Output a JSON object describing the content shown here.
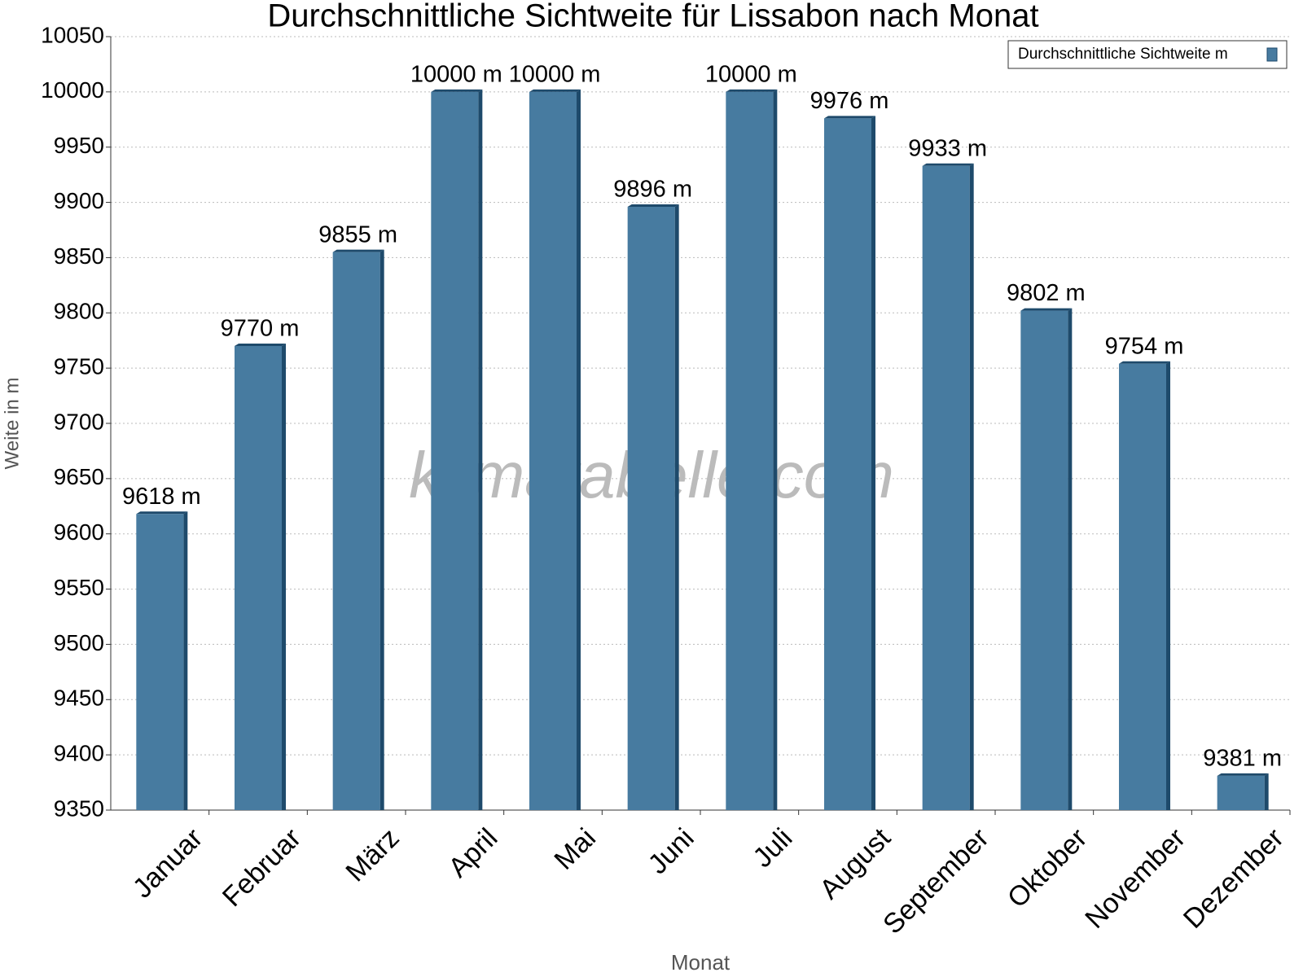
{
  "chart_data": {
    "type": "bar",
    "title": "Durchschnittliche Sichtweite für Lissabon nach Monat",
    "x_label": "Monat",
    "y_label": "Weite in m",
    "watermark": "klimatabelle.com",
    "categories": [
      "Januar",
      "Februar",
      "März",
      "April",
      "Mai",
      "Juni",
      "Juli",
      "August",
      "September",
      "Oktober",
      "November",
      "Dezember"
    ],
    "series": [
      {
        "name": "Durchschnittliche Sichtweite m",
        "color": "#477ba0",
        "values": [
          9618,
          9770,
          9855,
          10000,
          10000,
          9896,
          10000,
          9976,
          9933,
          9802,
          9754,
          9381
        ],
        "value_labels": [
          "9618 m",
          "9770 m",
          "9855 m",
          "10000 m",
          "10000 m",
          "9896 m",
          "10000 m",
          "9976 m",
          "9933 m",
          "9802 m",
          "9754 m",
          "9381 m"
        ]
      }
    ],
    "ylim": [
      9350,
      10050
    ],
    "yticks": [
      9350,
      9400,
      9450,
      9500,
      9550,
      9600,
      9650,
      9700,
      9750,
      9800,
      9850,
      9900,
      9950,
      10000,
      10050
    ],
    "grid": true,
    "legend": "top-right"
  }
}
